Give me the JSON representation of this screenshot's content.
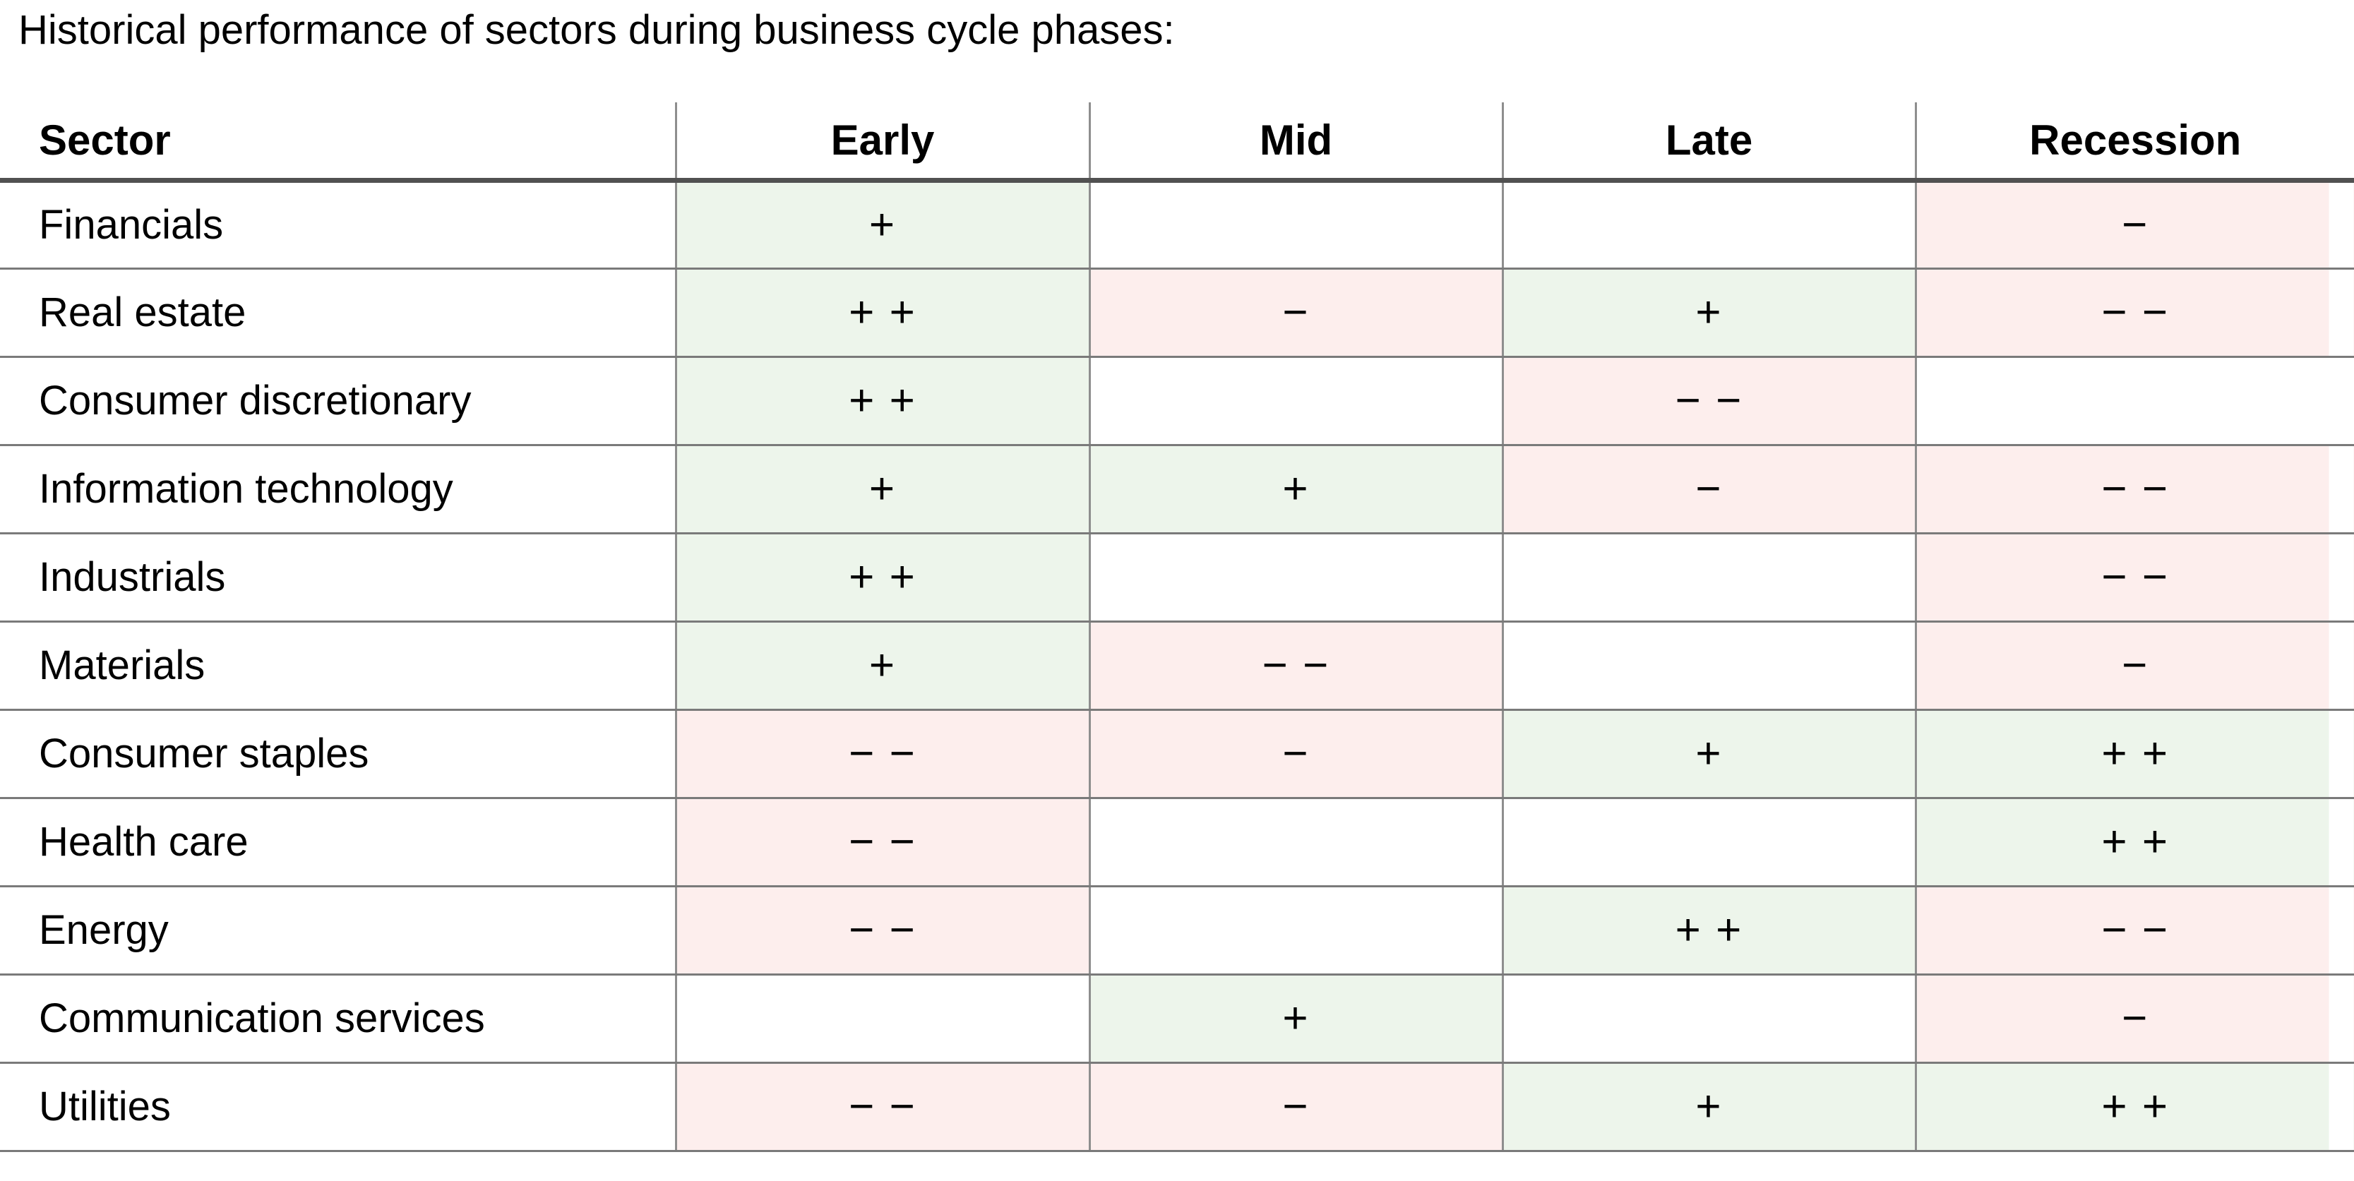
{
  "title": "Historical performance of sectors during business cycle phases:",
  "colors": {
    "positive_bg": "#edf5eb",
    "negative_bg": "#fdeeed",
    "row_line": "#7a7a7a",
    "column_line": "#8e8e8e",
    "header_underline": "#515151",
    "text": "#000000"
  },
  "table": {
    "columns": [
      {
        "label": "Sector",
        "align": "left"
      },
      {
        "label": "Early",
        "align": "center"
      },
      {
        "label": "Mid",
        "align": "center"
      },
      {
        "label": "Late",
        "align": "center"
      },
      {
        "label": "Recession",
        "align": "center"
      }
    ],
    "rows": [
      {
        "sector": "Financials",
        "cells": [
          {
            "text": "+",
            "tone": "positive"
          },
          {
            "text": "",
            "tone": "none"
          },
          {
            "text": "",
            "tone": "none"
          },
          {
            "text": "−",
            "tone": "negative"
          }
        ]
      },
      {
        "sector": "Real estate",
        "cells": [
          {
            "text": "+ +",
            "tone": "positive"
          },
          {
            "text": "−",
            "tone": "negative"
          },
          {
            "text": "+",
            "tone": "positive"
          },
          {
            "text": "− −",
            "tone": "negative"
          }
        ]
      },
      {
        "sector": "Consumer discretionary",
        "cells": [
          {
            "text": "+ +",
            "tone": "positive"
          },
          {
            "text": "",
            "tone": "none"
          },
          {
            "text": "− −",
            "tone": "negative"
          },
          {
            "text": "",
            "tone": "none"
          }
        ]
      },
      {
        "sector": "Information technology",
        "cells": [
          {
            "text": "+",
            "tone": "positive"
          },
          {
            "text": "+",
            "tone": "positive"
          },
          {
            "text": "−",
            "tone": "negative"
          },
          {
            "text": "− −",
            "tone": "negative"
          }
        ]
      },
      {
        "sector": "Industrials",
        "cells": [
          {
            "text": "+ +",
            "tone": "positive"
          },
          {
            "text": "",
            "tone": "none"
          },
          {
            "text": "",
            "tone": "none"
          },
          {
            "text": "− −",
            "tone": "negative"
          }
        ]
      },
      {
        "sector": "Materials",
        "cells": [
          {
            "text": "+",
            "tone": "positive"
          },
          {
            "text": "− −",
            "tone": "negative"
          },
          {
            "text": "",
            "tone": "none"
          },
          {
            "text": "−",
            "tone": "negative"
          }
        ]
      },
      {
        "sector": "Consumer staples",
        "cells": [
          {
            "text": "− −",
            "tone": "negative"
          },
          {
            "text": "−",
            "tone": "negative"
          },
          {
            "text": "+",
            "tone": "positive"
          },
          {
            "text": "+ +",
            "tone": "positive"
          }
        ]
      },
      {
        "sector": "Health care",
        "cells": [
          {
            "text": "− −",
            "tone": "negative"
          },
          {
            "text": "",
            "tone": "none"
          },
          {
            "text": "",
            "tone": "none"
          },
          {
            "text": "+ +",
            "tone": "positive"
          }
        ]
      },
      {
        "sector": "Energy",
        "cells": [
          {
            "text": "− −",
            "tone": "negative"
          },
          {
            "text": "",
            "tone": "none"
          },
          {
            "text": "+ +",
            "tone": "positive"
          },
          {
            "text": "− −",
            "tone": "negative"
          }
        ]
      },
      {
        "sector": "Communication services",
        "cells": [
          {
            "text": "",
            "tone": "none"
          },
          {
            "text": "+",
            "tone": "positive"
          },
          {
            "text": "",
            "tone": "none"
          },
          {
            "text": "−",
            "tone": "negative"
          }
        ]
      },
      {
        "sector": "Utilities",
        "cells": [
          {
            "text": "− −",
            "tone": "negative"
          },
          {
            "text": "−",
            "tone": "negative"
          },
          {
            "text": "+",
            "tone": "positive"
          },
          {
            "text": "+ +",
            "tone": "positive"
          }
        ]
      }
    ]
  },
  "chart_data": {
    "type": "table",
    "title": "Historical performance of sectors during business cycle phases:",
    "columns": [
      "Sector",
      "Early",
      "Mid",
      "Late",
      "Recession"
    ],
    "rows": [
      [
        "Financials",
        "+",
        "",
        "",
        "−"
      ],
      [
        "Real estate",
        "++",
        "−",
        "+",
        "−−"
      ],
      [
        "Consumer discretionary",
        "++",
        "",
        "−−",
        ""
      ],
      [
        "Information technology",
        "+",
        "+",
        "−",
        "−−"
      ],
      [
        "Industrials",
        "++",
        "",
        "",
        "−−"
      ],
      [
        "Materials",
        "+",
        "−−",
        "",
        "−"
      ],
      [
        "Consumer staples",
        "−−",
        "−",
        "+",
        "++"
      ],
      [
        "Health care",
        "−−",
        "",
        "",
        "++"
      ],
      [
        "Energy",
        "−−",
        "",
        "++",
        "−−"
      ],
      [
        "Communication services",
        "",
        "+",
        "",
        "−"
      ],
      [
        "Utilities",
        "−−",
        "−",
        "+",
        "++"
      ]
    ],
    "cell_highlight": {
      "positive_cells_bg": "#edf5eb",
      "negative_cells_bg": "#fdeeed",
      "empty_cells_bg": "#ffffff"
    }
  }
}
